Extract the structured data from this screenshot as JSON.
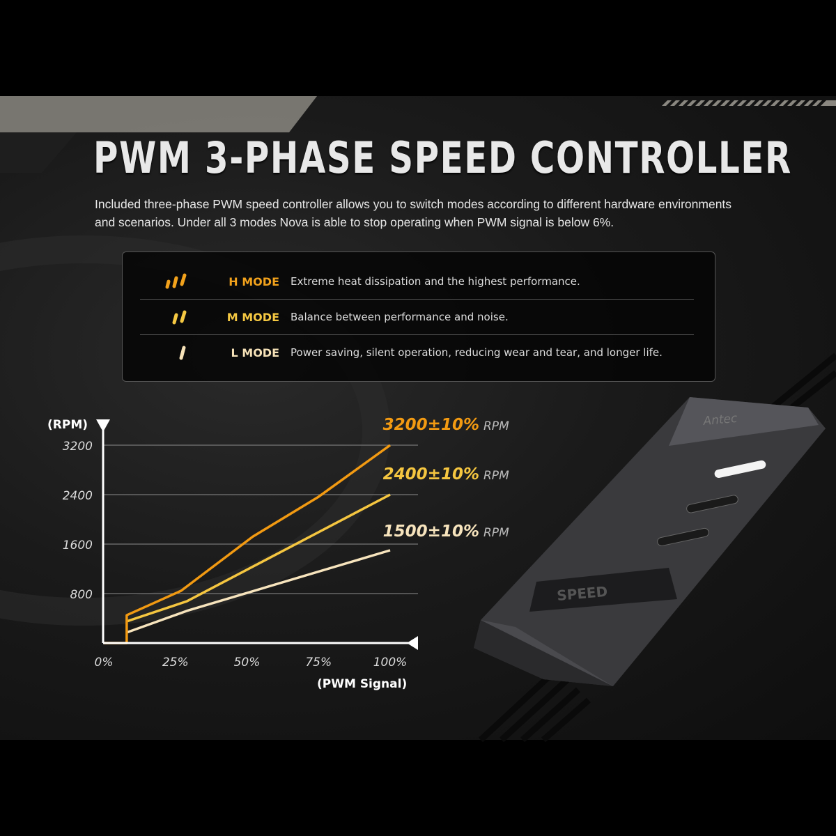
{
  "title": "PWM 3-PHASE SPEED CONTROLLER",
  "intro": "Included three-phase PWM speed controller allows you to switch modes according to different hardware environments and scenarios. Under all 3 modes Nova is able to stop operating when PWM signal is below 6%.",
  "modes": [
    {
      "name": "H MODE",
      "desc": "Extreme heat dissipation and the highest performance.",
      "icon": "three-bars-icon",
      "color": "#f2a21c"
    },
    {
      "name": "M MODE",
      "desc": "Balance between performance and noise.",
      "icon": "two-bars-icon",
      "color": "#f5c842"
    },
    {
      "name": "L MODE",
      "desc": "Power saving, silent operation, reducing wear and tear, and longer life.",
      "icon": "one-bar-icon",
      "color": "#f6e2b8"
    }
  ],
  "device": {
    "brand": "Antec",
    "button_label": "SPEED"
  },
  "chart_data": {
    "type": "line",
    "ylabel": "(RPM)",
    "xlabel": "(PWM Signal)",
    "xlim": [
      0,
      100
    ],
    "ylim": [
      0,
      3200
    ],
    "x_ticks": [
      "0%",
      "25%",
      "50%",
      "75%",
      "100%"
    ],
    "y_ticks": [
      "800",
      "1600",
      "2400",
      "3200"
    ],
    "grid": true,
    "series": [
      {
        "name": "3200±10%",
        "unit": "RPM",
        "color": "#f29a12",
        "points": [
          [
            0,
            0
          ],
          [
            8,
            0
          ],
          [
            8,
            450
          ],
          [
            27,
            845
          ],
          [
            52,
            1720
          ],
          [
            75,
            2365
          ],
          [
            100,
            3200
          ]
        ]
      },
      {
        "name": "2400±10%",
        "unit": "RPM",
        "color": "#f5c640",
        "points": [
          [
            8,
            350
          ],
          [
            29,
            675
          ],
          [
            52,
            1234
          ],
          [
            100,
            2400
          ]
        ]
      },
      {
        "name": "1500±10%",
        "unit": "RPM",
        "color": "#f7e4bd",
        "points": [
          [
            8,
            170
          ],
          [
            29,
            520
          ],
          [
            100,
            1500
          ]
        ]
      }
    ]
  }
}
